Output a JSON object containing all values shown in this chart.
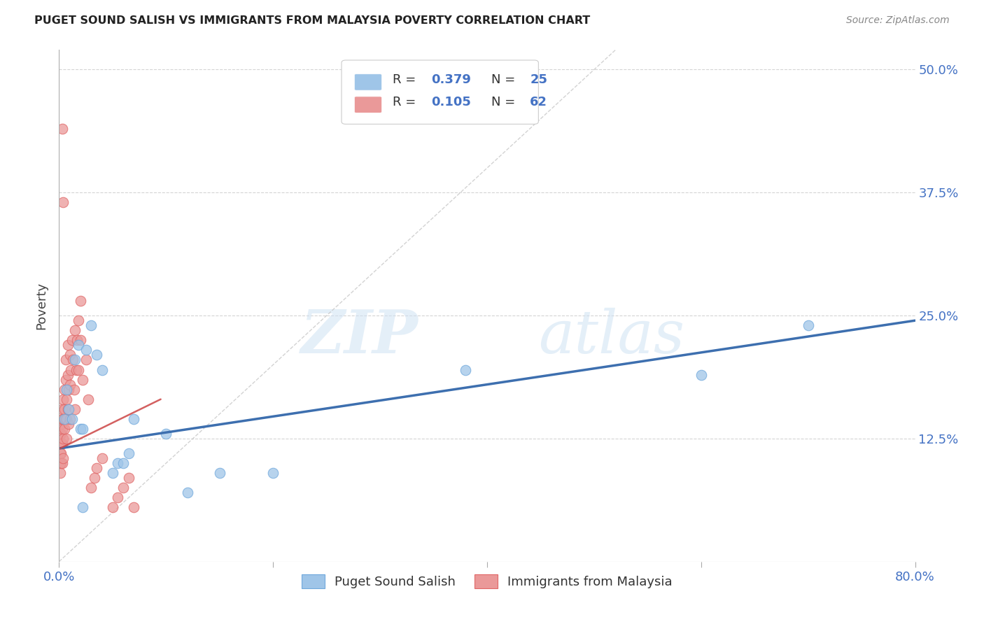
{
  "title": "PUGET SOUND SALISH VS IMMIGRANTS FROM MALAYSIA POVERTY CORRELATION CHART",
  "source": "Source: ZipAtlas.com",
  "tick_color": "#4472c4",
  "ylabel": "Poverty",
  "xlim": [
    0.0,
    0.8
  ],
  "ylim": [
    0.0,
    0.52
  ],
  "xticks": [
    0.0,
    0.2,
    0.4,
    0.6,
    0.8
  ],
  "yticks": [
    0.0,
    0.125,
    0.25,
    0.375,
    0.5
  ],
  "ytick_labels_right": [
    "",
    "12.5%",
    "25.0%",
    "37.5%",
    "50.0%"
  ],
  "xtick_labels": [
    "0.0%",
    "",
    "",
    "",
    "80.0%"
  ],
  "blue_R": 0.379,
  "blue_N": 25,
  "pink_R": 0.105,
  "pink_N": 62,
  "blue_color": "#9fc5e8",
  "pink_color": "#ea9999",
  "blue_edge_color": "#6fa8dc",
  "pink_edge_color": "#e06666",
  "blue_line_color": "#3d6faf",
  "pink_line_color": "#cc4444",
  "blue_line_start_y": 0.115,
  "blue_line_end_y": 0.245,
  "pink_line_start_x": 0.001,
  "pink_line_start_y": 0.115,
  "pink_line_end_x": 0.095,
  "pink_line_end_y": 0.165,
  "blue_scatter_x": [
    0.005,
    0.007,
    0.009,
    0.012,
    0.015,
    0.018,
    0.02,
    0.022,
    0.025,
    0.03,
    0.035,
    0.04,
    0.05,
    0.055,
    0.06,
    0.065,
    0.07,
    0.1,
    0.12,
    0.15,
    0.2,
    0.38,
    0.6,
    0.7,
    0.022
  ],
  "blue_scatter_y": [
    0.145,
    0.175,
    0.155,
    0.145,
    0.205,
    0.22,
    0.135,
    0.135,
    0.215,
    0.24,
    0.21,
    0.195,
    0.09,
    0.1,
    0.1,
    0.11,
    0.145,
    0.13,
    0.07,
    0.09,
    0.09,
    0.195,
    0.19,
    0.24,
    0.055
  ],
  "pink_scatter_x": [
    0.001,
    0.001,
    0.001,
    0.001,
    0.001,
    0.002,
    0.002,
    0.002,
    0.002,
    0.002,
    0.003,
    0.003,
    0.003,
    0.003,
    0.003,
    0.004,
    0.004,
    0.004,
    0.004,
    0.005,
    0.005,
    0.005,
    0.006,
    0.006,
    0.006,
    0.007,
    0.007,
    0.007,
    0.008,
    0.008,
    0.008,
    0.009,
    0.009,
    0.01,
    0.01,
    0.01,
    0.011,
    0.012,
    0.013,
    0.014,
    0.015,
    0.015,
    0.016,
    0.017,
    0.018,
    0.018,
    0.02,
    0.02,
    0.022,
    0.025,
    0.027,
    0.03,
    0.033,
    0.035,
    0.04,
    0.05,
    0.055,
    0.06,
    0.065,
    0.07,
    0.003,
    0.004
  ],
  "pink_scatter_y": [
    0.13,
    0.12,
    0.11,
    0.1,
    0.09,
    0.14,
    0.13,
    0.12,
    0.11,
    0.1,
    0.155,
    0.145,
    0.135,
    0.12,
    0.1,
    0.165,
    0.145,
    0.125,
    0.105,
    0.175,
    0.155,
    0.135,
    0.205,
    0.185,
    0.145,
    0.165,
    0.145,
    0.125,
    0.22,
    0.19,
    0.155,
    0.175,
    0.14,
    0.21,
    0.18,
    0.145,
    0.195,
    0.225,
    0.205,
    0.175,
    0.235,
    0.155,
    0.195,
    0.225,
    0.245,
    0.195,
    0.265,
    0.225,
    0.185,
    0.205,
    0.165,
    0.075,
    0.085,
    0.095,
    0.105,
    0.055,
    0.065,
    0.075,
    0.085,
    0.055,
    0.44,
    0.365
  ],
  "watermark_zip": "ZIP",
  "watermark_atlas": "atlas",
  "background_color": "#ffffff",
  "grid_color": "#d0d0d0",
  "diag_line_color": "#c8c8c8",
  "legend_label_blue": "Puget Sound Salish",
  "legend_label_pink": "Immigrants from Malaysia"
}
